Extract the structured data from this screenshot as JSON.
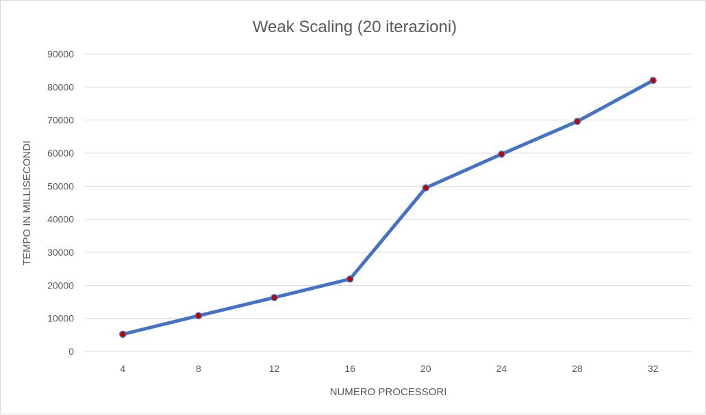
{
  "chart_data": {
    "type": "line",
    "title": "Weak Scaling (20 iterazioni)",
    "xlabel": "NUMERO PROCESSORI",
    "ylabel": "TEMPO IN MILLISECONDI",
    "categories": [
      "4",
      "8",
      "12",
      "16",
      "20",
      "24",
      "28",
      "32"
    ],
    "yticks": [
      "0",
      "10000",
      "20000",
      "30000",
      "40000",
      "50000",
      "60000",
      "70000",
      "80000",
      "90000"
    ],
    "ylim": [
      0,
      90000
    ],
    "grid": true,
    "series": [
      {
        "values": [
          5200,
          10800,
          16300,
          21900,
          49500,
          59700,
          69600,
          82000
        ],
        "line_color": "#4472c4",
        "marker_fill": "#c00000",
        "marker_edge": "#4472c4"
      }
    ]
  }
}
